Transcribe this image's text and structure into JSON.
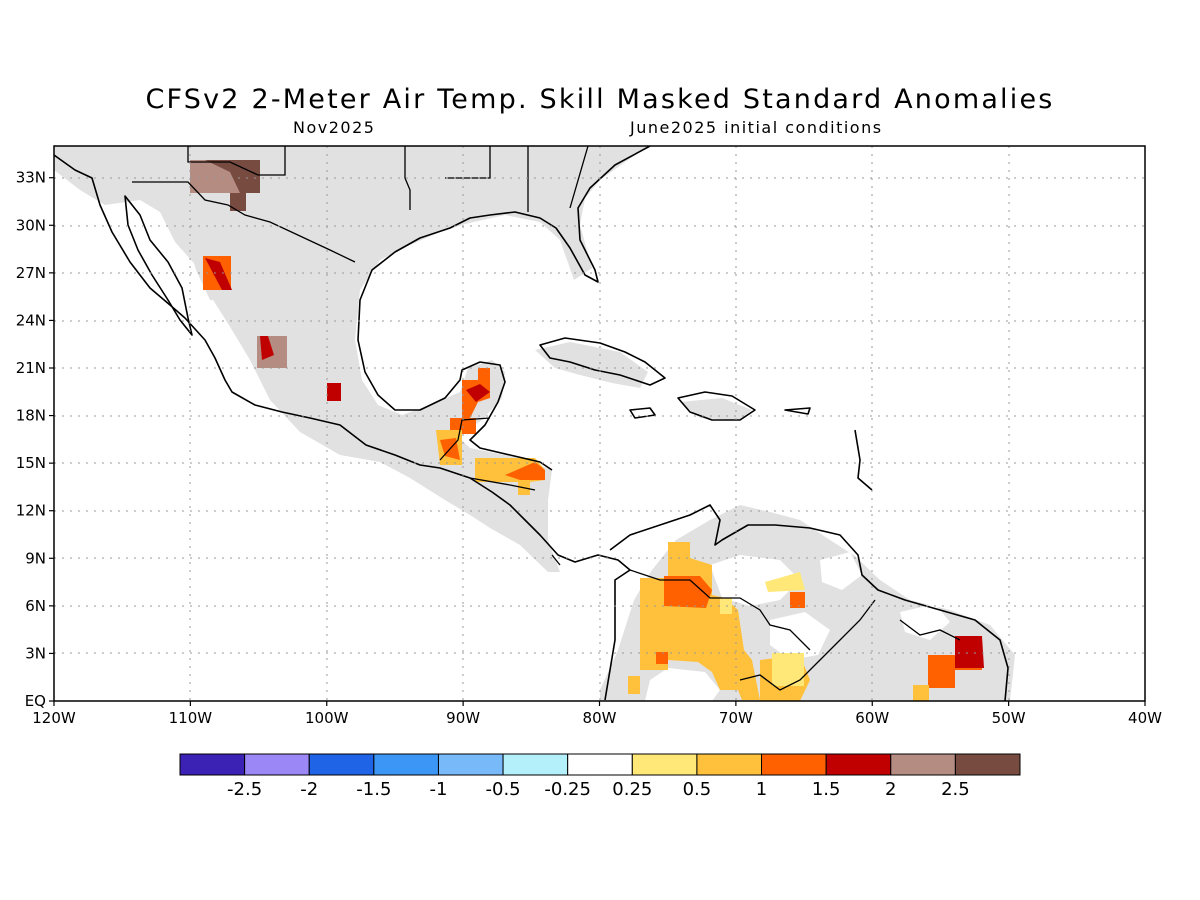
{
  "title": "CFSv2 2-Meter Air Temp. Skill Masked Standard Anomalies",
  "subtitle_left": "Nov2025",
  "subtitle_right": "June2025 initial conditions",
  "map": {
    "lon_range": [
      -120,
      -40
    ],
    "lat_range": [
      0,
      35
    ],
    "grid": true,
    "mask_color": "#e1e1e1",
    "lat_ticks": [
      {
        "value": 33,
        "label": "33N"
      },
      {
        "value": 30,
        "label": "30N"
      },
      {
        "value": 27,
        "label": "27N"
      },
      {
        "value": 24,
        "label": "24N"
      },
      {
        "value": 21,
        "label": "21N"
      },
      {
        "value": 18,
        "label": "18N"
      },
      {
        "value": 15,
        "label": "15N"
      },
      {
        "value": 12,
        "label": "12N"
      },
      {
        "value": 9,
        "label": "9N"
      },
      {
        "value": 6,
        "label": "6N"
      },
      {
        "value": 3,
        "label": "3N"
      },
      {
        "value": 0,
        "label": "EQ"
      }
    ],
    "lon_ticks": [
      {
        "value": -120,
        "label": "120W"
      },
      {
        "value": -110,
        "label": "110W"
      },
      {
        "value": -100,
        "label": "100W"
      },
      {
        "value": -90,
        "label": "90W"
      },
      {
        "value": -80,
        "label": "80W"
      },
      {
        "value": -70,
        "label": "70W"
      },
      {
        "value": -60,
        "label": "60W"
      },
      {
        "value": -50,
        "label": "50W"
      },
      {
        "value": -40,
        "label": "40W"
      }
    ]
  },
  "colorbar": {
    "colors": [
      "#3b22b4",
      "#9b87f5",
      "#1f64e6",
      "#3c96f5",
      "#78b9fa",
      "#b4f0fa",
      "#ffffff",
      "#ffe878",
      "#ffc03c",
      "#ff6000",
      "#c00000",
      "#b48c82",
      "#784b41"
    ],
    "labels": [
      "-2.5",
      "-2",
      "-1.5",
      "-1",
      "-0.5",
      "-0.25",
      "0.25",
      "0.5",
      "1",
      "1.5",
      "2",
      "2.5"
    ]
  }
}
